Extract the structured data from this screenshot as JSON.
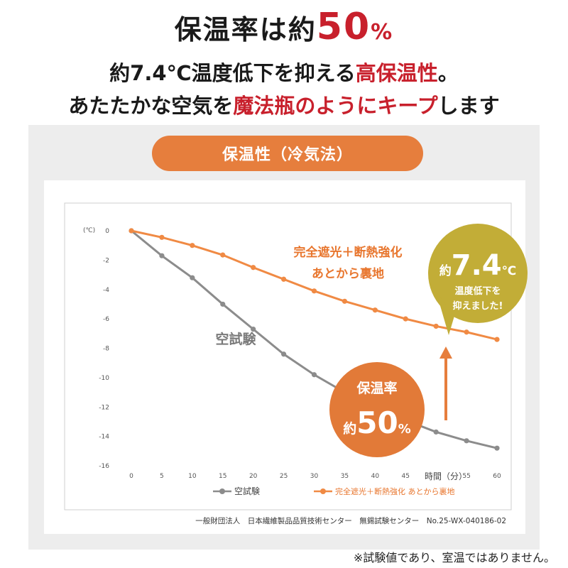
{
  "headline": {
    "line1_prefix": "保温率は約",
    "line1_number": "50",
    "line1_unit": "%",
    "line2_prefix": "約7.4℃温度低下を抑える",
    "line2_emph": "高保温性",
    "line2_suffix": "。",
    "line3_prefix": "あたたかな空気を",
    "line3_emph": "魔法瓶のようにキープ",
    "line3_suffix": "します"
  },
  "pill_label": "保温性（冷気法）",
  "chart_data": {
    "type": "line",
    "ylabel": "(℃)",
    "xlabel": "時間（分）",
    "x": [
      0,
      5,
      10,
      15,
      20,
      25,
      30,
      35,
      40,
      45,
      50,
      55,
      60
    ],
    "xticks": [
      "0",
      "5",
      "10",
      "15",
      "20",
      "25",
      "30",
      "35",
      "40",
      "45",
      "50",
      "55",
      "60"
    ],
    "ylim": [
      -16,
      0
    ],
    "yticks": [
      "0",
      "-2",
      "-4",
      "-6",
      "-8",
      "-10",
      "-12",
      "-14",
      "-16"
    ],
    "grid": false,
    "legend": "bottom",
    "series": [
      {
        "name": "空試験",
        "color": "#8c8c8c",
        "values": [
          0,
          -1.7,
          -3.2,
          -5.0,
          -6.7,
          -8.4,
          -9.8,
          -11.0,
          -12.0,
          -12.9,
          -13.7,
          -14.3,
          -14.8
        ]
      },
      {
        "name": "完全遮光＋断熱強化 あとから裏地",
        "color": "#f08a44",
        "values": [
          0,
          -0.45,
          -1.0,
          -1.65,
          -2.5,
          -3.3,
          -4.1,
          -4.8,
          -5.4,
          -6.0,
          -6.5,
          -6.9,
          -7.4
        ]
      }
    ],
    "annotations": {
      "series2_line1": "完全遮光＋断熱強化",
      "series2_line2": "あとから裏地",
      "series1_label": "空試験",
      "bubble_prefix": "約",
      "bubble_value": "7.4",
      "bubble_unit": "℃",
      "bubble_line1": "温度低下を",
      "bubble_line2": "抑えました!",
      "circle_line1": "保温率",
      "circle_prefix": "約",
      "circle_value": "50",
      "circle_unit": "%"
    },
    "source": "一般財団法人　日本繊維製品品質技術センター　無錫試験センター　No.25-WX-040186-02"
  },
  "footnote": "※試験値であり、室温ではありません。",
  "colors": {
    "accent_red": "#c8202c",
    "pill_orange": "#e67e3d",
    "series_orange": "#f08a44",
    "series_gray": "#8c8c8c",
    "bubble_olive": "#c2ad37",
    "circle_orange": "#e27a38"
  }
}
